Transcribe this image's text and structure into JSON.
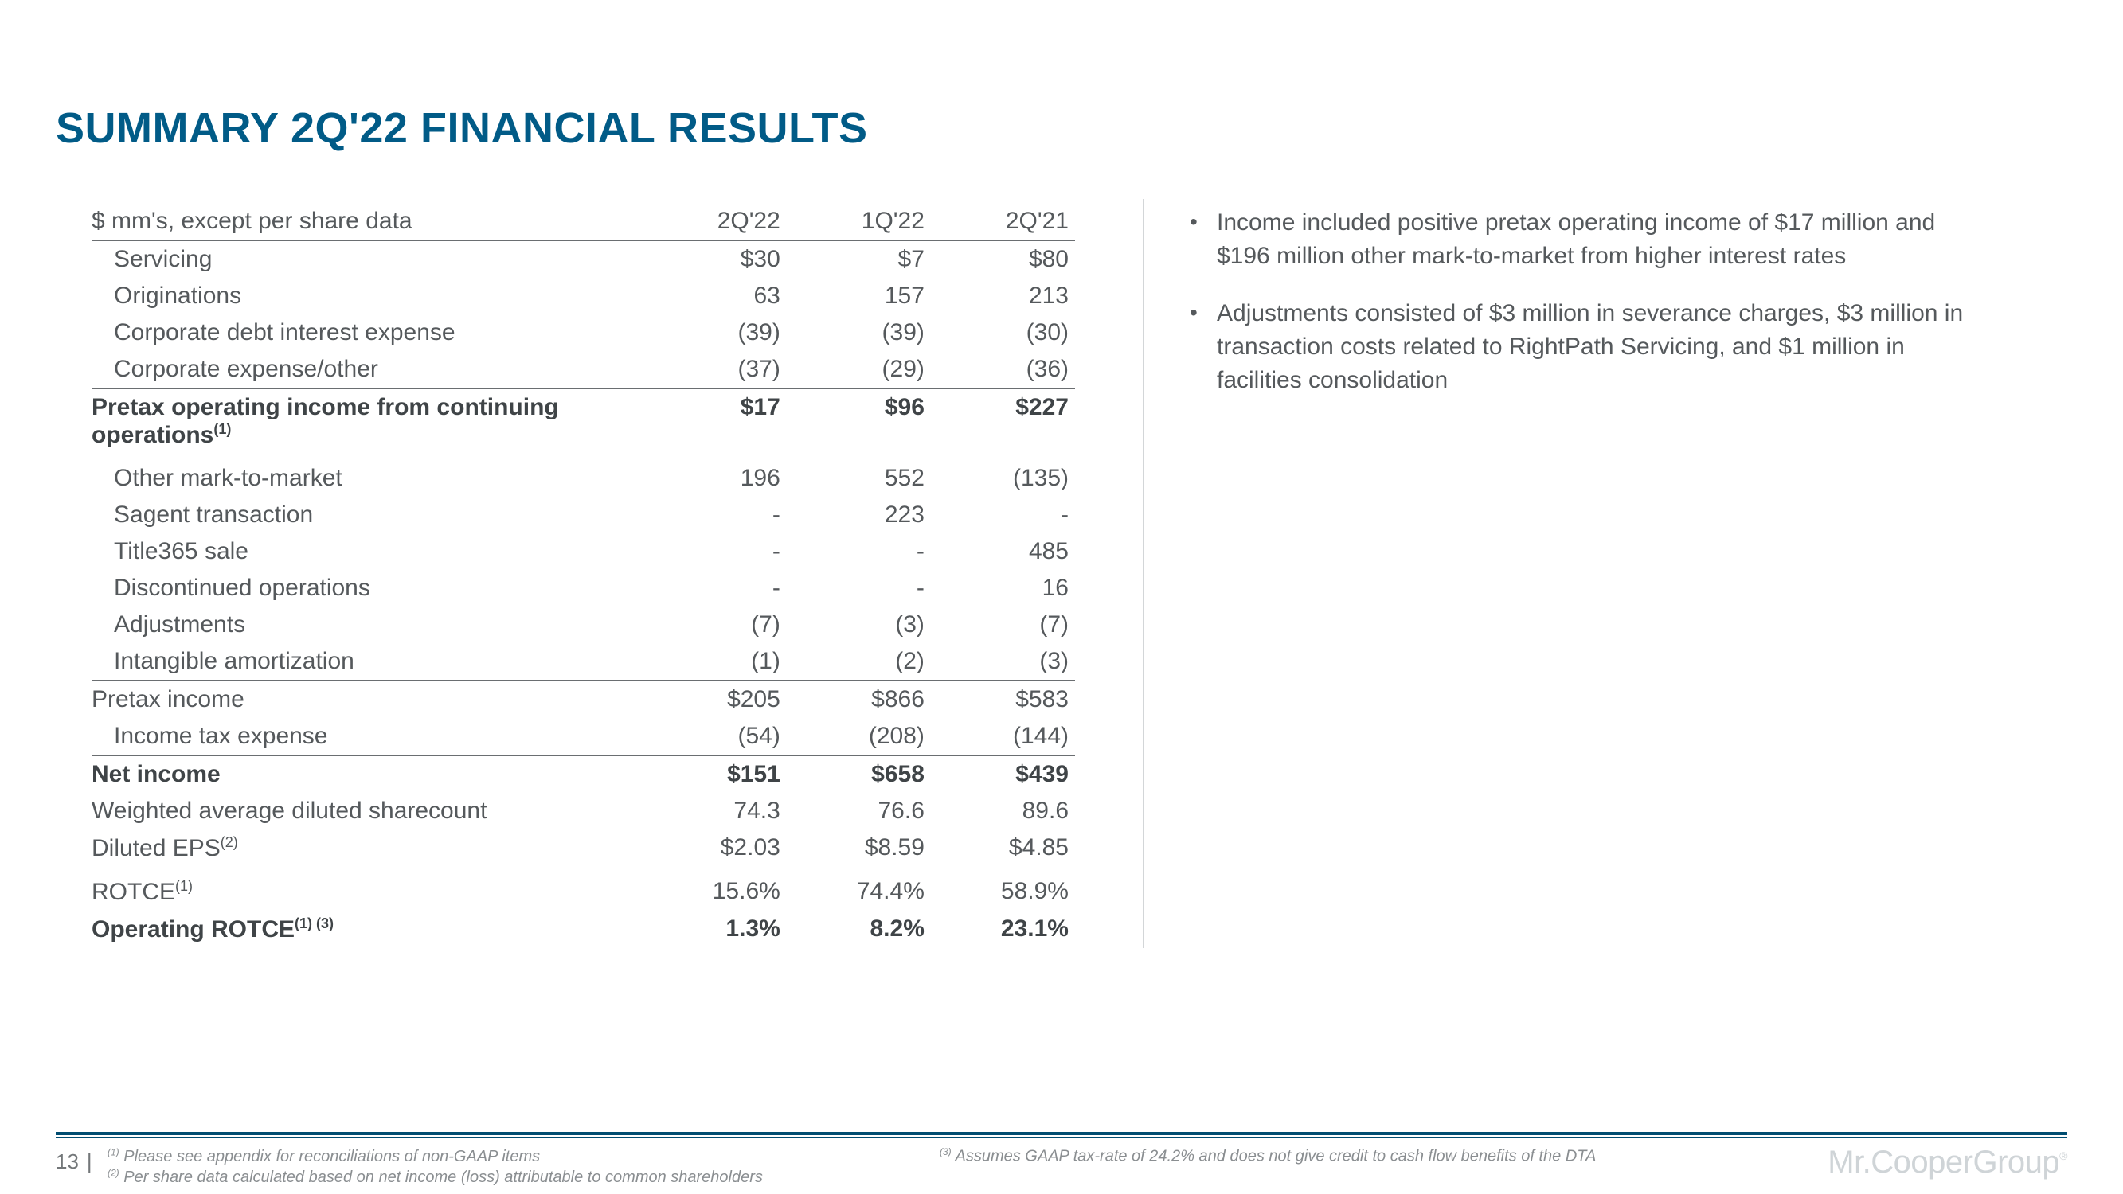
{
  "colors": {
    "title": "#015b87",
    "text": "#55595c",
    "bold_text": "#3f4447",
    "rule": "#6a6e71",
    "divider": "#d3d6d8",
    "footer_rule": "#014d71",
    "footnote": "#8a8e91",
    "logo": "#cfd4d7",
    "background": "#ffffff"
  },
  "typography": {
    "title_fontsize": 54,
    "body_fontsize": 30,
    "footnote_fontsize": 20,
    "logo_fontsize": 40,
    "font_family": "Segoe UI"
  },
  "title": "SUMMARY 2Q'22 FINANCIAL RESULTS",
  "table": {
    "header_label": "$ mm's, except per share data",
    "columns": [
      "2Q'22",
      "1Q'22",
      "2Q'21"
    ],
    "rows": [
      {
        "label": "Servicing",
        "indent": true,
        "values": [
          "$30",
          "$7",
          "$80"
        ]
      },
      {
        "label": "Originations",
        "indent": true,
        "values": [
          "63",
          "157",
          "213"
        ]
      },
      {
        "label": "Corporate debt interest expense",
        "indent": true,
        "values": [
          "(39)",
          "(39)",
          "(30)"
        ]
      },
      {
        "label": "Corporate expense/other",
        "indent": true,
        "values": [
          "(37)",
          "(29)",
          "(36)"
        ]
      },
      {
        "label": "Pretax operating income from continuing operations",
        "sup": "(1)",
        "bold": true,
        "section_top": true,
        "values": [
          "$17",
          "$96",
          "$227"
        ]
      },
      {
        "label": "Other mark-to-market",
        "indent": true,
        "gap": true,
        "values": [
          "196",
          "552",
          "(135)"
        ]
      },
      {
        "label": "Sagent transaction",
        "indent": true,
        "values": [
          "-",
          "223",
          "-"
        ]
      },
      {
        "label": "Title365 sale",
        "indent": true,
        "values": [
          "-",
          "-",
          "485"
        ]
      },
      {
        "label": "Discontinued operations",
        "indent": true,
        "values": [
          "-",
          "-",
          "16"
        ]
      },
      {
        "label": "Adjustments",
        "indent": true,
        "values": [
          "(7)",
          "(3)",
          "(7)"
        ]
      },
      {
        "label": "Intangible amortization",
        "indent": true,
        "values": [
          "(1)",
          "(2)",
          "(3)"
        ]
      },
      {
        "label": "Pretax income",
        "section_top": true,
        "values": [
          "$205",
          "$866",
          "$583"
        ]
      },
      {
        "label": "Income tax expense",
        "indent": true,
        "values": [
          "(54)",
          "(208)",
          "(144)"
        ]
      },
      {
        "label": "Net income",
        "bold": true,
        "section_top": true,
        "values": [
          "$151",
          "$658",
          "$439"
        ]
      },
      {
        "label": "Weighted average diluted sharecount",
        "values": [
          "74.3",
          "76.6",
          "89.6"
        ]
      },
      {
        "label": "Diluted EPS",
        "sup": "(2)",
        "values": [
          "$2.03",
          "$8.59",
          "$4.85"
        ]
      },
      {
        "label": "ROTCE",
        "sup": "(1)",
        "gap": true,
        "values": [
          "15.6%",
          "74.4%",
          "58.9%"
        ]
      },
      {
        "label": "Operating ROTCE",
        "sup": "(1) (3)",
        "bold": true,
        "values": [
          "1.3%",
          "8.2%",
          "23.1%"
        ]
      }
    ]
  },
  "bullets": [
    "Income included positive pretax operating income of $17 million and $196 million other mark-to-market from higher interest rates",
    "Adjustments consisted of $3 million in severance charges, $3 million in transaction costs related to RightPath Servicing, and $1 million in facilities consolidation"
  ],
  "footer": {
    "page_number": "13",
    "footnote1": "Please see appendix for reconciliations of non-GAAP items",
    "footnote2": "Per share data calculated based on net income (loss) attributable to common shareholders",
    "footnote3": "Assumes GAAP tax-rate of 24.2% and does not give credit to cash flow benefits of the DTA",
    "logo_mr": "Mr.",
    "logo_cooper": "Cooper",
    "logo_group": "Group"
  }
}
